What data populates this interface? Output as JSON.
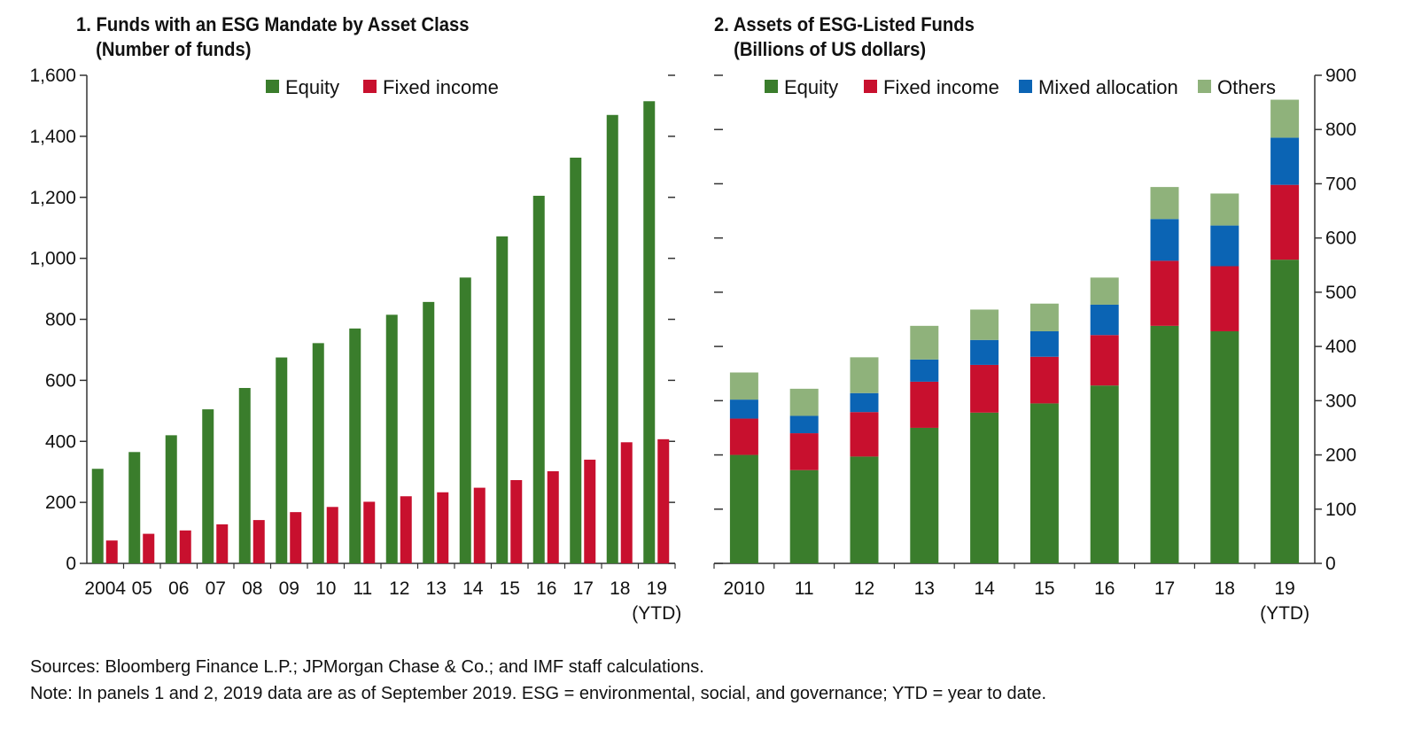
{
  "panel1": {
    "title": "1. Funds with an ESG Mandate by Asset Class",
    "subtitle": "(Number of funds)"
  },
  "panel2": {
    "title": "2. Assets of ESG-Listed Funds",
    "subtitle": "(Billions of US dollars)"
  },
  "notes": {
    "sources": "Sources: Bloomberg Finance L.P.; JPMorgan Chase & Co.; and IMF staff calculations.",
    "note": "Note: In panels 1 and 2, 2019 data are as of September 2019. ESG = environmental, social, and governance; YTD = year to date."
  },
  "colors": {
    "equity": "#3a7d2c",
    "fixed_income": "#c8102e",
    "mixed_allocation": "#0b64b4",
    "others": "#8fb27b",
    "axis": "#333333"
  },
  "chart_data": [
    {
      "type": "bar",
      "title": "1. Funds with an ESG Mandate by Asset Class",
      "subtitle": "(Number of funds)",
      "categories": [
        "2004",
        "05",
        "06",
        "07",
        "08",
        "09",
        "10",
        "11",
        "12",
        "13",
        "14",
        "15",
        "16",
        "17",
        "18",
        "19"
      ],
      "extra_label": "(YTD)",
      "ylim": [
        0,
        1600
      ],
      "yticks": [
        0,
        200,
        400,
        600,
        800,
        1000,
        1200,
        1400,
        1600
      ],
      "ytick_labels": [
        "0",
        "200",
        "400",
        "600",
        "800",
        "1,000",
        "1,200",
        "1,400",
        "1,600"
      ],
      "legend_position": "top-center",
      "series": [
        {
          "name": "Equity",
          "values": [
            310,
            365,
            420,
            505,
            575,
            675,
            722,
            770,
            815,
            857,
            937,
            1072,
            1205,
            1330,
            1470,
            1515
          ]
        },
        {
          "name": "Fixed income",
          "values": [
            75,
            97,
            108,
            128,
            142,
            168,
            185,
            202,
            220,
            233,
            248,
            273,
            302,
            340,
            397,
            407
          ]
        }
      ]
    },
    {
      "type": "bar",
      "stacked": true,
      "title": "2. Assets of ESG-Listed Funds",
      "subtitle": "(Billions of US dollars)",
      "categories": [
        "2010",
        "11",
        "12",
        "13",
        "14",
        "15",
        "16",
        "17",
        "18",
        "19"
      ],
      "extra_label": "(YTD)",
      "ylim": [
        0,
        900
      ],
      "yticks": [
        0,
        100,
        200,
        300,
        400,
        500,
        600,
        700,
        800,
        900
      ],
      "ytick_labels": [
        "0",
        "100",
        "200",
        "300",
        "400",
        "500",
        "600",
        "700",
        "800",
        "900"
      ],
      "legend_position": "top-center",
      "series": [
        {
          "name": "Equity",
          "values": [
            200,
            172,
            197,
            250,
            278,
            295,
            328,
            438,
            428,
            560
          ]
        },
        {
          "name": "Fixed income",
          "values": [
            67,
            68,
            82,
            85,
            88,
            86,
            93,
            120,
            120,
            138
          ]
        },
        {
          "name": "Mixed allocation",
          "values": [
            35,
            32,
            35,
            41,
            46,
            47,
            56,
            77,
            75,
            87
          ]
        },
        {
          "name": "Others",
          "values": [
            50,
            50,
            66,
            62,
            56,
            51,
            50,
            59,
            59,
            70
          ]
        }
      ]
    }
  ]
}
